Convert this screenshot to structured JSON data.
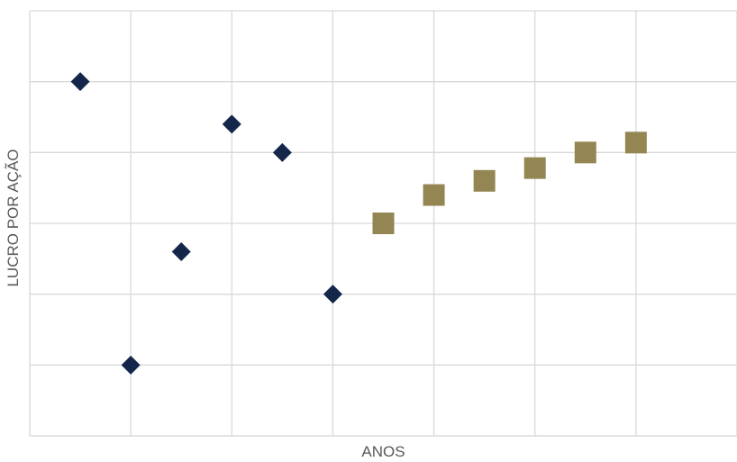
{
  "chart_data": {
    "type": "scatter",
    "title": "",
    "xlabel": "ANOS",
    "ylabel": "LUCRO POR AÇÃO",
    "xlim": [
      0,
      7
    ],
    "ylim": [
      0,
      6
    ],
    "grid": true,
    "x_ticks_shown": false,
    "y_ticks_shown": false,
    "series": [
      {
        "marker": "diamond",
        "color": "#14274a",
        "points": [
          {
            "x": 0.5,
            "y": 5.0
          },
          {
            "x": 1.0,
            "y": 1.0
          },
          {
            "x": 1.5,
            "y": 2.6
          },
          {
            "x": 2.0,
            "y": 4.4
          },
          {
            "x": 2.5,
            "y": 4.0
          },
          {
            "x": 3.0,
            "y": 2.0
          }
        ]
      },
      {
        "marker": "square",
        "color": "#938653",
        "points": [
          {
            "x": 3.5,
            "y": 3.0
          },
          {
            "x": 4.0,
            "y": 3.4
          },
          {
            "x": 4.5,
            "y": 3.6
          },
          {
            "x": 5.0,
            "y": 3.78
          },
          {
            "x": 5.5,
            "y": 4.0
          },
          {
            "x": 6.0,
            "y": 4.14
          }
        ]
      }
    ]
  }
}
